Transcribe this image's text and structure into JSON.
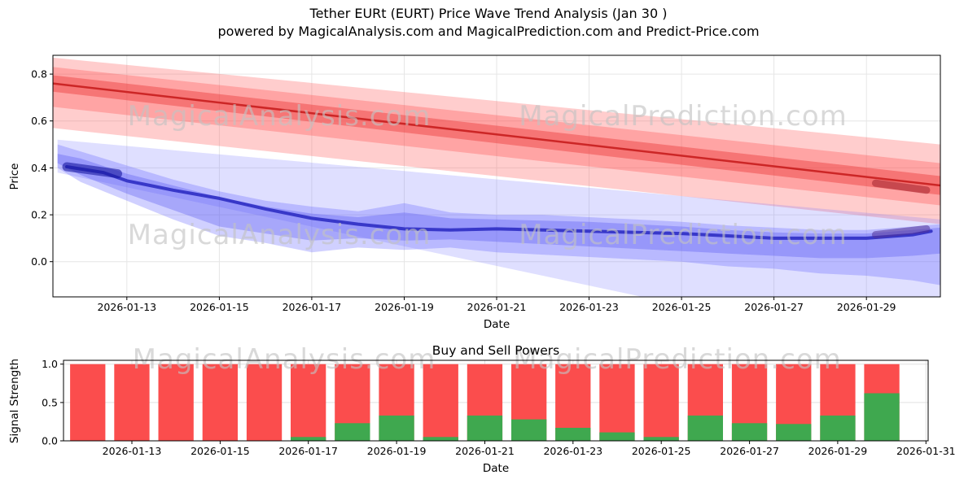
{
  "title": {
    "line1": "Tether EURt (EURT) Price Wave Trend Analysis (Jan 30 )",
    "line2": "powered by MagicalAnalysis.com and MagicalPrediction.com and Predict-Price.com"
  },
  "chart_data": [
    {
      "type": "area",
      "name": "price-wave-trend",
      "xlabel": "Date",
      "ylabel": "Price",
      "x_domain": [
        11.4,
        30.6
      ],
      "ylim": [
        -0.15,
        0.88
      ],
      "grid_color": "#e6e6e6",
      "yticks": [
        {
          "v": 0.0,
          "label": "0.0"
        },
        {
          "v": 0.2,
          "label": "0.2"
        },
        {
          "v": 0.4,
          "label": "0.4"
        },
        {
          "v": 0.6,
          "label": "0.6"
        },
        {
          "v": 0.8,
          "label": "0.8"
        }
      ],
      "xticks": [
        {
          "v": 13,
          "label": "2026-01-13"
        },
        {
          "v": 15,
          "label": "2026-01-15"
        },
        {
          "v": 17,
          "label": "2026-01-17"
        },
        {
          "v": 19,
          "label": "2026-01-19"
        },
        {
          "v": 21,
          "label": "2026-01-21"
        },
        {
          "v": 23,
          "label": "2026-01-23"
        },
        {
          "v": 25,
          "label": "2026-01-25"
        },
        {
          "v": 27,
          "label": "2026-01-27"
        },
        {
          "v": 29,
          "label": "2026-01-29"
        }
      ],
      "series": [
        {
          "name": "red-outer-band",
          "kind": "band",
          "color": "rgba(255,90,90,0.30)",
          "x": [
            11.4,
            30.6
          ],
          "upper": [
            0.87,
            0.5
          ],
          "lower": [
            0.57,
            0.16
          ]
        },
        {
          "name": "red-inner-band",
          "kind": "band",
          "color": "rgba(255,70,70,0.30)",
          "x": [
            11.4,
            30.6
          ],
          "upper": [
            0.83,
            0.42
          ],
          "lower": [
            0.66,
            0.24
          ]
        },
        {
          "name": "red-line-band",
          "kind": "band",
          "color": "rgba(235,60,60,0.45)",
          "x": [
            11.4,
            30.6
          ],
          "upper": [
            0.795,
            0.365
          ],
          "lower": [
            0.725,
            0.285
          ]
        },
        {
          "name": "red-trend-line",
          "kind": "line",
          "color": "rgba(200,30,30,0.9)",
          "width": 2.5,
          "x": [
            11.4,
            30.6
          ],
          "y": [
            0.76,
            0.325
          ]
        },
        {
          "name": "red-end-cluster",
          "kind": "line",
          "color": "rgba(160,35,45,0.55)",
          "width": 9,
          "x": [
            29.2,
            30.3
          ],
          "y": [
            0.335,
            0.305
          ]
        },
        {
          "name": "blue-outer-band",
          "kind": "band",
          "color": "rgba(110,110,255,0.22)",
          "x": [
            11.5,
            30.6
          ],
          "upper": [
            0.52,
            0.18
          ],
          "lower": [
            0.38,
            -0.42
          ]
        },
        {
          "name": "blue-mid-band",
          "kind": "band",
          "color": "rgba(100,100,255,0.30)",
          "x": [
            11.5,
            12,
            13,
            14,
            15,
            16,
            17,
            18,
            19,
            20,
            21,
            22,
            23,
            24,
            25,
            26,
            27,
            28,
            29,
            30,
            30.6
          ],
          "upper": [
            0.5,
            0.47,
            0.41,
            0.35,
            0.3,
            0.26,
            0.235,
            0.215,
            0.25,
            0.21,
            0.2,
            0.2,
            0.19,
            0.18,
            0.17,
            0.155,
            0.145,
            0.135,
            0.135,
            0.15,
            0.16
          ],
          "lower": [
            0.4,
            0.34,
            0.26,
            0.18,
            0.11,
            0.08,
            0.04,
            0.06,
            0.05,
            0.06,
            0.04,
            0.03,
            0.02,
            0.01,
            0.0,
            -0.02,
            -0.03,
            -0.05,
            -0.06,
            -0.08,
            -0.1
          ]
        },
        {
          "name": "blue-core-band",
          "kind": "band",
          "color": "rgba(80,80,240,0.32)",
          "x": [
            11.5,
            12,
            13,
            14,
            15,
            16,
            17,
            18,
            19,
            20,
            21,
            22,
            23,
            24,
            25,
            26,
            27,
            28,
            29,
            30,
            30.6
          ],
          "upper": [
            0.46,
            0.44,
            0.375,
            0.325,
            0.275,
            0.235,
            0.205,
            0.19,
            0.21,
            0.185,
            0.18,
            0.175,
            0.17,
            0.16,
            0.15,
            0.135,
            0.125,
            0.12,
            0.12,
            0.135,
            0.145
          ],
          "lower": [
            0.42,
            0.37,
            0.29,
            0.22,
            0.15,
            0.12,
            0.09,
            0.1,
            0.09,
            0.095,
            0.085,
            0.075,
            0.065,
            0.055,
            0.045,
            0.035,
            0.025,
            0.015,
            0.015,
            0.025,
            0.035
          ]
        },
        {
          "name": "blue-trend-line",
          "kind": "line",
          "color": "rgba(35,35,190,0.82)",
          "width": 4,
          "x": [
            11.7,
            12.5,
            13,
            13.5,
            14,
            15,
            16,
            17,
            18,
            19,
            20,
            21,
            22,
            23,
            24,
            25,
            26,
            27,
            28,
            29,
            30,
            30.4
          ],
          "y": [
            0.405,
            0.38,
            0.345,
            0.325,
            0.305,
            0.27,
            0.225,
            0.185,
            0.16,
            0.14,
            0.135,
            0.14,
            0.135,
            0.13,
            0.125,
            0.12,
            0.11,
            0.1,
            0.1,
            0.1,
            0.115,
            0.13
          ]
        },
        {
          "name": "blue-start-cluster",
          "kind": "line",
          "color": "rgba(25,25,160,0.6)",
          "width": 11,
          "x": [
            11.7,
            12.8
          ],
          "y": [
            0.405,
            0.375
          ]
        },
        {
          "name": "blue-end-cluster",
          "kind": "line",
          "color": "rgba(80,50,150,0.55)",
          "width": 9,
          "x": [
            29.2,
            30.3
          ],
          "y": [
            0.115,
            0.14
          ]
        }
      ],
      "watermarks": [
        {
          "text": "MagicalAnalysis.com",
          "fx": 0.255,
          "fy": 0.29
        },
        {
          "text": "MagicalPrediction.com",
          "fx": 0.71,
          "fy": 0.29
        },
        {
          "text": "MagicalAnalysis.com",
          "fx": 0.255,
          "fy": 0.78
        },
        {
          "text": "MagicalPrediction.com",
          "fx": 0.71,
          "fy": 0.78
        }
      ]
    },
    {
      "type": "bar",
      "name": "buy-sell-powers",
      "title": "Buy and Sell Powers",
      "xlabel": "Date",
      "ylabel": "Signal Strength",
      "x_domain": [
        11.45,
        31.05
      ],
      "ylim": [
        0,
        1.05
      ],
      "bar_width": 0.8,
      "grid_color": "#e0e0e0",
      "yticks": [
        {
          "v": 0.0,
          "label": "0.0"
        },
        {
          "v": 0.5,
          "label": "0.5"
        },
        {
          "v": 1.0,
          "label": "1.0"
        }
      ],
      "xticks": [
        {
          "v": 13,
          "label": "2026-01-13"
        },
        {
          "v": 15,
          "label": "2026-01-15"
        },
        {
          "v": 17,
          "label": "2026-01-17"
        },
        {
          "v": 19,
          "label": "2026-01-19"
        },
        {
          "v": 21,
          "label": "2026-01-21"
        },
        {
          "v": 23,
          "label": "2026-01-23"
        },
        {
          "v": 25,
          "label": "2026-01-25"
        },
        {
          "v": 27,
          "label": "2026-01-27"
        },
        {
          "v": 29,
          "label": "2026-01-29"
        },
        {
          "v": 31,
          "label": "2026-01-31"
        }
      ],
      "categories": [
        "2026-01-12",
        "2026-01-13",
        "2026-01-14",
        "2026-01-15",
        "2026-01-16",
        "2026-01-17",
        "2026-01-18",
        "2026-01-19",
        "2026-01-20",
        "2026-01-21",
        "2026-01-22",
        "2026-01-23",
        "2026-01-24",
        "2026-01-25",
        "2026-01-26",
        "2026-01-27",
        "2026-01-28",
        "2026-01-29",
        "2026-01-30"
      ],
      "x": [
        12,
        13,
        14,
        15,
        16,
        17,
        18,
        19,
        20,
        21,
        22,
        23,
        24,
        25,
        26,
        27,
        28,
        29,
        30
      ],
      "series": [
        {
          "name": "sell-power",
          "color": "#fb4d4d",
          "values": [
            1,
            1,
            1,
            1,
            1,
            1,
            1,
            1,
            1,
            1,
            1,
            1,
            1,
            1,
            1,
            1,
            1,
            1,
            1
          ]
        },
        {
          "name": "buy-power",
          "color": "#3fa84f",
          "values": [
            0,
            0,
            0,
            0,
            0,
            0.05,
            0.23,
            0.33,
            0.05,
            0.33,
            0.28,
            0.17,
            0.11,
            0.05,
            0.33,
            0.23,
            0.22,
            0.33,
            0.62
          ]
        }
      ],
      "watermarks": [
        {
          "text": "MagicalAnalysis.com",
          "fx": 0.255,
          "fy": 0.1
        },
        {
          "text": "MagicalPrediction.com",
          "fx": 0.71,
          "fy": 0.1
        }
      ]
    }
  ]
}
